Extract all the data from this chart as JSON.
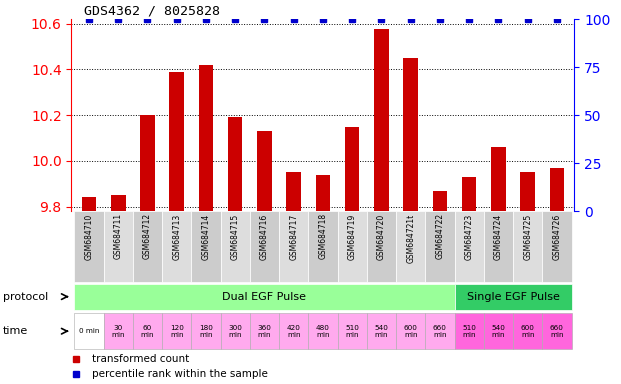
{
  "title": "GDS4362 / 8025828",
  "samples": [
    "GSM684710",
    "GSM684711",
    "GSM684712",
    "GSM684713",
    "GSM684714",
    "GSM684715",
    "GSM684716",
    "GSM684717",
    "GSM684718",
    "GSM684719",
    "GSM684720",
    "GSM684721t",
    "GSM684722",
    "GSM684723",
    "GSM684724",
    "GSM684725",
    "GSM684726"
  ],
  "bar_values": [
    9.84,
    9.85,
    10.2,
    10.39,
    10.42,
    10.19,
    10.13,
    9.95,
    9.94,
    10.15,
    10.575,
    10.45,
    9.87,
    9.93,
    10.06,
    9.95,
    9.97
  ],
  "percentile_values": [
    100,
    100,
    100,
    100,
    100,
    100,
    100,
    100,
    100,
    100,
    100,
    100,
    100,
    100,
    100,
    100,
    100
  ],
  "bar_color": "#cc0000",
  "percentile_color": "#0000cc",
  "ylim_left": [
    9.78,
    10.62
  ],
  "ylim_right": [
    0,
    100
  ],
  "yticks_left": [
    9.8,
    10.0,
    10.2,
    10.4,
    10.6
  ],
  "yticks_right": [
    0,
    25,
    50,
    75,
    100
  ],
  "protocol_dual": "Dual EGF Pulse",
  "protocol_single": "Single EGF Pulse",
  "protocol_dual_color": "#99ff99",
  "protocol_single_color": "#33cc66",
  "time_labels": [
    "0 min",
    "30\nmin",
    "60\nmin",
    "120\nmin",
    "180\nmin",
    "300\nmin",
    "360\nmin",
    "420\nmin",
    "480\nmin",
    "510\nmin",
    "540\nmin",
    "600\nmin",
    "660\nmin",
    "510\nmin",
    "540\nmin",
    "600\nmin",
    "660\nmin"
  ],
  "n_dual": 13,
  "n_single": 4,
  "bg_color": "#ffffff"
}
